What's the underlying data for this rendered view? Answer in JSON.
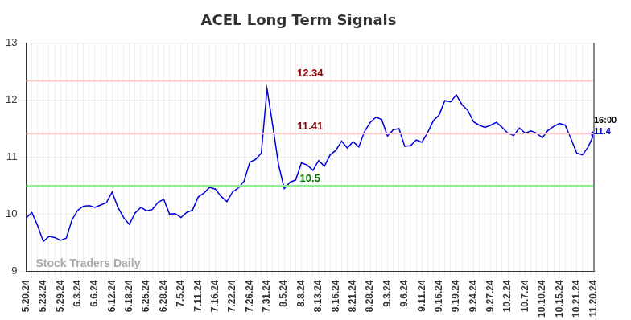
{
  "chart_data": {
    "type": "line",
    "title": "ACEL Long Term Signals",
    "categories": [
      "5.20.24",
      null,
      null,
      "5.23.24",
      null,
      null,
      "5.29.24",
      null,
      null,
      "6.3.24",
      null,
      null,
      "6.6.24",
      null,
      null,
      "6.12.24",
      null,
      null,
      "6.18.24",
      null,
      null,
      "6.25.24",
      null,
      null,
      "6.28.24",
      null,
      null,
      "7.5.24",
      null,
      null,
      "7.11.24",
      null,
      null,
      "7.16.24",
      null,
      null,
      "7.22.24",
      null,
      null,
      "7.26.24",
      null,
      null,
      "7.31.24",
      null,
      null,
      "8.5.24",
      null,
      null,
      "8.8.24",
      null,
      null,
      "8.13.24",
      null,
      null,
      "8.16.24",
      null,
      null,
      "8.21.24",
      null,
      null,
      "8.28.24",
      null,
      null,
      "9.3.24",
      null,
      null,
      "9.6.24",
      null,
      null,
      "9.11.24",
      null,
      null,
      "9.16.24",
      null,
      null,
      "9.19.24",
      null,
      null,
      "9.24.24",
      null,
      null,
      "9.27.24",
      null,
      null,
      "10.2.24",
      null,
      null,
      "10.7.24",
      null,
      null,
      "10.10.24",
      null,
      null,
      "10.15.24",
      null,
      null,
      "10.21.24",
      null,
      null,
      "11.20.24"
    ],
    "values": [
      9.93,
      10.03,
      9.8,
      9.52,
      9.61,
      9.59,
      9.54,
      9.58,
      9.9,
      10.07,
      10.14,
      10.15,
      10.12,
      10.16,
      10.2,
      10.39,
      10.12,
      9.94,
      9.82,
      10.02,
      10.12,
      10.06,
      10.08,
      10.21,
      10.26,
      10.0,
      10.01,
      9.94,
      10.03,
      10.07,
      10.3,
      10.37,
      10.47,
      10.44,
      10.31,
      10.22,
      10.39,
      10.46,
      10.58,
      10.91,
      10.96,
      11.07,
      12.2,
      11.55,
      10.87,
      10.45,
      10.56,
      10.6,
      10.9,
      10.86,
      10.77,
      10.94,
      10.84,
      11.04,
      11.12,
      11.28,
      11.16,
      11.27,
      11.18,
      11.45,
      11.61,
      11.7,
      11.66,
      11.37,
      11.48,
      11.5,
      11.19,
      11.2,
      11.3,
      11.26,
      11.43,
      11.64,
      11.74,
      11.99,
      11.97,
      12.09,
      11.92,
      11.82,
      11.62,
      11.56,
      11.52,
      11.56,
      11.61,
      11.52,
      11.42,
      11.38,
      11.51,
      11.42,
      11.46,
      11.42,
      11.34,
      11.47,
      11.54,
      11.59,
      11.56,
      11.32,
      11.07,
      11.04,
      11.18,
      11.4
    ],
    "color": "#0000dd",
    "ylim": [
      9,
      13
    ],
    "yticks": [
      9,
      10,
      11,
      12,
      13
    ],
    "grid": true,
    "levels": [
      {
        "value": 12.34,
        "color": "#ffc8c8",
        "label_color": "#8b0000"
      },
      {
        "value": 11.41,
        "color": "#ffc8c8",
        "label_color": "#8b0000"
      },
      {
        "value": 10.5,
        "color": "#90ee90",
        "label_color": "#007700"
      }
    ],
    "last_label": {
      "time": "16:00",
      "value": 11.4
    },
    "watermark": "Stock Traders Daily"
  }
}
